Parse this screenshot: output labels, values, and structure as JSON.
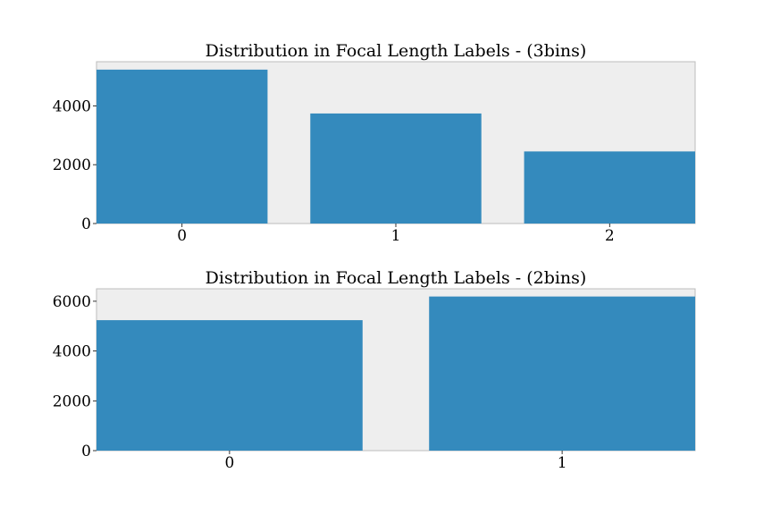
{
  "chart_data": [
    {
      "type": "bar",
      "title": "Distribution in Focal Length Labels - (3bins)",
      "categories": [
        "0",
        "1",
        "2"
      ],
      "values": [
        5230,
        3740,
        2450
      ],
      "xlabel": "",
      "ylabel": "",
      "yticks": [
        "0",
        "2000",
        "4000"
      ],
      "ylim": [
        0,
        5500
      ],
      "grid": false,
      "bar_color": "#348abd",
      "background_color": "#eeeeee"
    },
    {
      "type": "bar",
      "title": "Distribution in Focal Length Labels - (2bins)",
      "categories": [
        "0",
        "1"
      ],
      "values": [
        5240,
        6190
      ],
      "xlabel": "",
      "ylabel": "",
      "yticks": [
        "0",
        "2000",
        "4000",
        "6000"
      ],
      "ylim": [
        0,
        6500
      ],
      "grid": false,
      "bar_color": "#348abd",
      "background_color": "#eeeeee"
    }
  ]
}
